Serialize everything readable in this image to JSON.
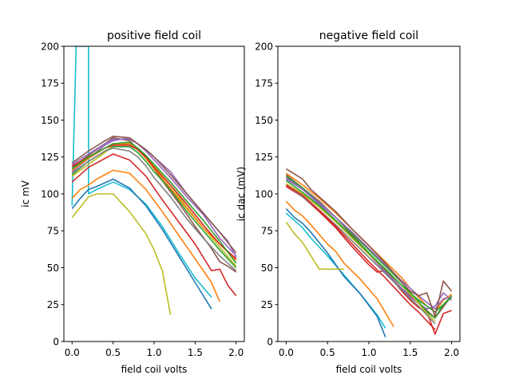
{
  "figure": {
    "colors": {
      "C0": "#1f77b4",
      "C1": "#ff7f0e",
      "C2": "#2ca02c",
      "C3": "#d62728",
      "C4": "#9467bd",
      "C5": "#8c564b",
      "C6": "#e377c2",
      "C7": "#7f7f7f",
      "C8": "#bcbd22",
      "C9": "#17becf"
    }
  },
  "chart_data": [
    {
      "type": "line",
      "title": "positive field coil",
      "xlabel": "field coil volts",
      "ylabel": "ic mV",
      "xlim": [
        -0.1,
        2.1
      ],
      "ylim": [
        0,
        200
      ],
      "xticks": [
        0.0,
        0.5,
        1.0,
        1.5,
        2.0
      ],
      "xtick_labels": [
        "0.0",
        "0.5",
        "1.0",
        "1.5",
        "2.0"
      ],
      "yticks": [
        0,
        25,
        50,
        75,
        100,
        125,
        150,
        175,
        200
      ],
      "ytick_labels": [
        "0",
        "25",
        "50",
        "75",
        "100",
        "125",
        "150",
        "175",
        "200"
      ],
      "grid": false,
      "series": [
        {
          "color": "C9",
          "x": [
            0.0,
            0.05,
            0.2,
            0.2,
            0.3,
            0.5,
            0.7,
            0.9,
            1.1,
            1.3,
            1.5,
            1.7
          ],
          "y": [
            92,
            200,
            200,
            100,
            103,
            108,
            103,
            93,
            78,
            60,
            43,
            30
          ]
        },
        {
          "color": "C0",
          "x": [
            0.0,
            0.1,
            0.2,
            0.3,
            0.5,
            0.7,
            0.9,
            1.1,
            1.3,
            1.5,
            1.7
          ],
          "y": [
            90,
            97,
            103,
            105,
            110,
            104,
            92,
            76,
            58,
            40,
            22
          ]
        },
        {
          "color": "C1",
          "x": [
            0.0,
            0.1,
            0.2,
            0.3,
            0.5,
            0.7,
            0.9,
            1.1,
            1.3,
            1.5,
            1.7,
            1.8
          ],
          "y": [
            97,
            103,
            106,
            110,
            116,
            114,
            103,
            88,
            72,
            56,
            40,
            27
          ]
        },
        {
          "color": "C8",
          "x": [
            0.0,
            0.2,
            0.3,
            0.5,
            0.7,
            0.9,
            1.0,
            1.1,
            1.2
          ],
          "y": [
            84,
            98,
            100,
            100,
            88,
            73,
            62,
            48,
            18
          ]
        },
        {
          "color": "C3",
          "x": [
            0.0,
            0.2,
            0.3,
            0.5,
            0.7,
            0.9,
            1.1,
            1.3,
            1.5,
            1.7,
            1.8,
            1.9,
            2.0
          ],
          "y": [
            108,
            118,
            121,
            127,
            123,
            112,
            96,
            81,
            66,
            48,
            49,
            38,
            31
          ]
        },
        {
          "color": "C5",
          "x": [
            0.0,
            0.2,
            0.3,
            0.5,
            0.7,
            0.9,
            1.1,
            1.3,
            1.5,
            1.7,
            1.8,
            1.9,
            2.0
          ],
          "y": [
            118,
            126,
            130,
            138,
            136,
            125,
            109,
            94,
            78,
            63,
            54,
            51,
            47
          ]
        },
        {
          "color": "C4",
          "x": [
            0.0,
            0.2,
            0.4,
            0.5,
            0.7,
            0.8,
            0.9,
            1.0,
            1.2,
            1.4,
            1.6,
            1.8,
            1.9,
            2.0
          ],
          "y": [
            115,
            124,
            133,
            136,
            138,
            134,
            130,
            125,
            115,
            100,
            87,
            74,
            68,
            57
          ]
        },
        {
          "color": "C2",
          "x": [
            0.0,
            0.2,
            0.4,
            0.5,
            0.7,
            0.8,
            0.9,
            1.0,
            1.2,
            1.4,
            1.6,
            1.8,
            2.0
          ],
          "y": [
            113,
            122,
            129,
            132,
            132,
            128,
            122,
            115,
            103,
            88,
            75,
            62,
            50
          ]
        },
        {
          "color": "C8",
          "x": [
            0.0,
            0.2,
            0.4,
            0.5,
            0.7,
            0.8,
            0.9,
            1.0,
            1.2,
            1.4,
            1.6,
            1.8,
            2.0
          ],
          "y": [
            112,
            120,
            128,
            133,
            134,
            131,
            126,
            119,
            106,
            91,
            77,
            64,
            51
          ]
        },
        {
          "color": "C1",
          "x": [
            0.0,
            0.2,
            0.4,
            0.5,
            0.7,
            0.8,
            0.9,
            1.0,
            1.2,
            1.4,
            1.6,
            1.8,
            2.0
          ],
          "y": [
            116,
            124,
            131,
            134,
            134,
            130,
            124,
            117,
            104,
            90,
            77,
            66,
            55
          ]
        },
        {
          "color": "C7",
          "x": [
            0.0,
            0.2,
            0.4,
            0.5,
            0.7,
            0.8,
            0.9,
            1.0,
            1.2,
            1.4,
            1.6,
            1.8,
            2.0
          ],
          "y": [
            114,
            122,
            129,
            131,
            129,
            125,
            119,
            111,
            98,
            83,
            70,
            58,
            48
          ]
        },
        {
          "color": "C3",
          "x": [
            0.0,
            0.2,
            0.4,
            0.5,
            0.7,
            0.8,
            0.9,
            1.0,
            1.2,
            1.4,
            1.6,
            1.8,
            2.0
          ],
          "y": [
            119,
            125,
            131,
            133,
            133,
            130,
            125,
            118,
            106,
            93,
            79,
            66,
            56
          ]
        },
        {
          "color": "C4",
          "x": [
            0.0,
            0.2,
            0.4,
            0.5,
            0.7,
            0.8,
            0.9,
            1.0,
            1.2,
            1.4,
            1.6,
            1.8,
            2.0
          ],
          "y": [
            120,
            127,
            134,
            137,
            137,
            134,
            129,
            123,
            111,
            98,
            86,
            70,
            58
          ]
        },
        {
          "color": "C2",
          "x": [
            0.0,
            0.2,
            0.4,
            0.5,
            0.7,
            0.8,
            0.9,
            1.0,
            1.2,
            1.4,
            1.6,
            1.8,
            2.0
          ],
          "y": [
            117,
            125,
            131,
            134,
            135,
            131,
            126,
            120,
            108,
            95,
            82,
            68,
            53
          ]
        },
        {
          "color": "C5",
          "x": [
            0.0,
            0.2,
            0.4,
            0.5,
            0.7,
            0.8,
            0.9,
            1.0,
            1.2,
            1.4,
            1.6,
            1.8,
            2.0
          ],
          "y": [
            121,
            129,
            136,
            139,
            138,
            134,
            130,
            125,
            113,
            100,
            87,
            74,
            60
          ]
        }
      ]
    },
    {
      "type": "line",
      "title": "negative field coil",
      "xlabel": "field coil volts",
      "ylabel": "ic dac (mV)",
      "xlim": [
        -0.1,
        2.1
      ],
      "ylim": [
        0,
        200
      ],
      "xticks": [
        0.0,
        0.5,
        1.0,
        1.5,
        2.0
      ],
      "xtick_labels": [
        "0.0",
        "0.5",
        "1.0",
        "1.5",
        "2.0"
      ],
      "yticks": [
        0,
        25,
        50,
        75,
        100,
        125,
        150,
        175,
        200
      ],
      "ytick_labels": [
        "0",
        "25",
        "50",
        "75",
        "100",
        "125",
        "150",
        "175",
        "200"
      ],
      "grid": false,
      "series": [
        {
          "color": "C9",
          "x": [
            0.0,
            0.1,
            0.2,
            0.3,
            0.5,
            0.7,
            0.9,
            1.1,
            1.2
          ],
          "y": [
            87,
            82,
            77,
            70,
            58,
            45,
            32,
            18,
            9
          ]
        },
        {
          "color": "C0",
          "x": [
            0.0,
            0.1,
            0.2,
            0.3,
            0.5,
            0.7,
            0.9,
            1.1,
            1.2
          ],
          "y": [
            90,
            84,
            80,
            74,
            60,
            44,
            32,
            17,
            3
          ]
        },
        {
          "color": "C1",
          "x": [
            0.0,
            0.1,
            0.2,
            0.3,
            0.5,
            0.6,
            0.7,
            0.9,
            1.1,
            1.3
          ],
          "y": [
            95,
            89,
            85,
            79,
            66,
            61,
            53,
            42,
            29,
            10
          ]
        },
        {
          "color": "C8",
          "x": [
            0.0,
            0.1,
            0.2,
            0.3,
            0.4,
            0.5,
            0.6,
            0.7
          ],
          "y": [
            81,
            73,
            67,
            58,
            49,
            49,
            49,
            49
          ]
        },
        {
          "color": "C3",
          "x": [
            0.0,
            0.2,
            0.4,
            0.6,
            0.8,
            1.0,
            1.1,
            1.2,
            1.4,
            1.5,
            1.6,
            1.7,
            1.8,
            1.9,
            2.0
          ],
          "y": [
            105,
            98,
            88,
            77,
            64,
            52,
            47,
            48,
            34,
            28,
            23,
            20,
            5,
            19,
            21
          ]
        },
        {
          "color": "C5",
          "x": [
            0.0,
            0.2,
            0.4,
            0.6,
            0.8,
            1.0,
            1.2,
            1.4,
            1.6,
            1.8,
            2.0
          ],
          "y": [
            113,
            104,
            95,
            84,
            72,
            60,
            48,
            36,
            26,
            16,
            31
          ]
        },
        {
          "color": "C4",
          "x": [
            0.0,
            0.2,
            0.4,
            0.6,
            0.8,
            1.0,
            1.2,
            1.4,
            1.5,
            1.6,
            1.7,
            1.8,
            1.9,
            2.0
          ],
          "y": [
            110,
            103,
            93,
            82,
            70,
            59,
            47,
            36,
            30,
            26,
            22,
            24,
            33,
            28
          ]
        },
        {
          "color": "C2",
          "x": [
            0.0,
            0.2,
            0.4,
            0.6,
            0.8,
            1.0,
            1.2,
            1.4,
            1.5,
            1.6,
            1.7,
            1.8,
            1.9,
            2.0
          ],
          "y": [
            112,
            104,
            94,
            84,
            73,
            62,
            51,
            40,
            33,
            27,
            20,
            16,
            25,
            31
          ]
        },
        {
          "color": "C8",
          "x": [
            0.0,
            0.2,
            0.4,
            0.6,
            0.8,
            1.0,
            1.2,
            1.4,
            1.5,
            1.6,
            1.7,
            1.8
          ],
          "y": [
            107,
            100,
            91,
            81,
            70,
            59,
            49,
            38,
            32,
            26,
            19,
            14
          ]
        },
        {
          "color": "C1",
          "x": [
            0.0,
            0.2,
            0.4,
            0.6,
            0.8,
            1.0,
            1.2,
            1.4,
            1.5,
            1.6,
            1.7,
            1.8,
            1.9,
            2.0
          ],
          "y": [
            114,
            106,
            97,
            87,
            76,
            65,
            54,
            43,
            36,
            30,
            24,
            20,
            28,
            32
          ]
        },
        {
          "color": "C7",
          "x": [
            0.0,
            0.2,
            0.4,
            0.6,
            0.8,
            1.0,
            1.2,
            1.4,
            1.5,
            1.6,
            1.7,
            1.8
          ],
          "y": [
            106,
            98,
            89,
            79,
            68,
            57,
            46,
            35,
            29,
            24,
            18,
            12
          ]
        },
        {
          "color": "C3",
          "x": [
            0.0,
            0.2,
            0.4,
            0.6,
            0.8,
            1.0,
            1.2,
            1.4,
            1.5,
            1.6,
            1.7,
            1.8
          ],
          "y": [
            106,
            99,
            89,
            78,
            66,
            54,
            43,
            31,
            25,
            20,
            14,
            8
          ]
        },
        {
          "color": "C4",
          "x": [
            0.0,
            0.2,
            0.4,
            0.6,
            0.8,
            1.0,
            1.2,
            1.4,
            1.6,
            1.8,
            1.9,
            2.0
          ],
          "y": [
            111,
            103,
            94,
            84,
            74,
            63,
            52,
            41,
            31,
            22,
            29,
            30
          ]
        },
        {
          "color": "C2",
          "x": [
            0.0,
            0.2,
            0.4,
            0.6,
            0.8,
            1.0,
            1.2,
            1.4,
            1.6,
            1.8,
            2.0
          ],
          "y": [
            109,
            101,
            92,
            82,
            71,
            60,
            49,
            38,
            28,
            20,
            30
          ]
        },
        {
          "color": "C5",
          "x": [
            0.0,
            0.2,
            0.3,
            0.4,
            0.6,
            0.8,
            1.0,
            1.2,
            1.4,
            1.5,
            1.6,
            1.7,
            1.8,
            1.9,
            2.0
          ],
          "y": [
            117,
            110,
            103,
            98,
            88,
            76,
            65,
            53,
            40,
            34,
            31,
            33,
            17,
            41,
            34
          ]
        }
      ]
    }
  ]
}
